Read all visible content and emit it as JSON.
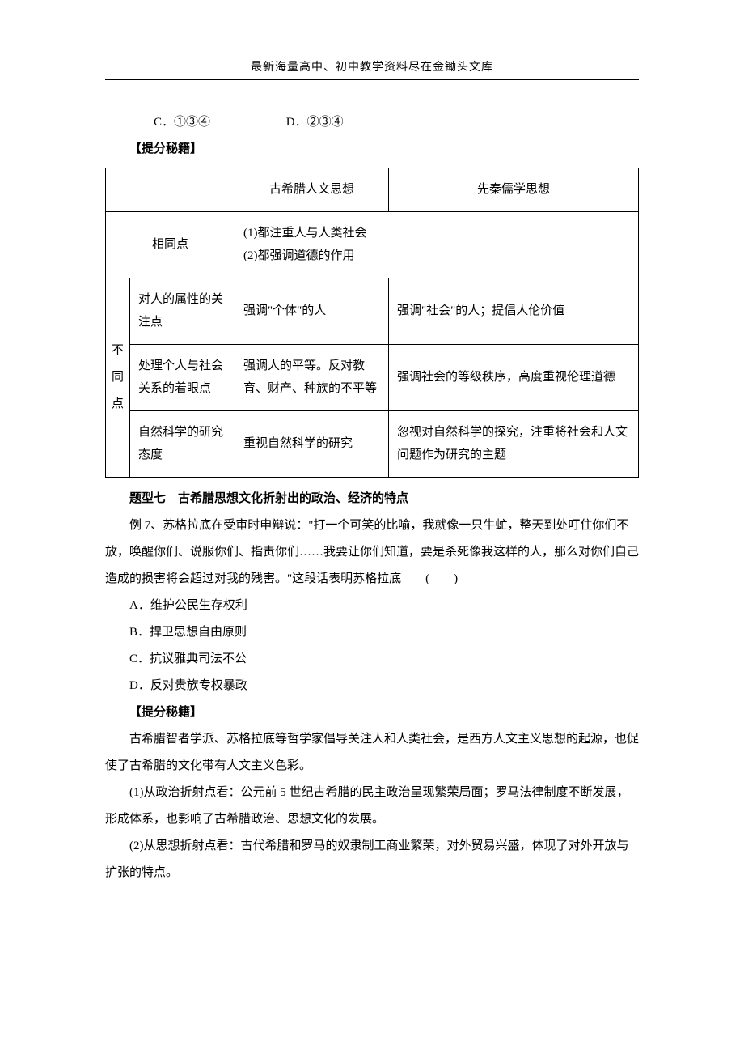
{
  "header": "最新海量高中、初中教学资料尽在金锄头文库",
  "options_cd": {
    "c_label": "C．",
    "c_text": "①③④",
    "d_label": "D．",
    "d_text": "②③④"
  },
  "tips_label": "【提分秘籍】",
  "table": {
    "head_greek": "古希腊人文思想",
    "head_qin": "先秦儒学思想",
    "same_label": "相同点",
    "same_text": "(1)都注重人与人类社会\n(2)都强调道德的作用",
    "diff_label": "不同点",
    "rows": [
      {
        "aspect": "对人的属性的关注点",
        "greek": "强调\"个体\"的人",
        "qin": "强调\"社会\"的人；提倡人伦价值"
      },
      {
        "aspect": "处理个人与社会关系的着眼点",
        "greek": "强调人的平等。反对教育、财产、种族的不平等",
        "qin": "强调社会的等级秩序，高度重视伦理道德"
      },
      {
        "aspect": "自然科学的研究态度",
        "greek": "重视自然科学的研究",
        "qin": "忽视对自然科学的探究，注重将社会和人文问题作为研究的主题"
      }
    ]
  },
  "q7": {
    "title": "题型七　古希腊思想文化折射出的政治、经济的特点",
    "stem_prefix": "例 7、",
    "stem": "苏格拉底在受审时申辩说：\"打一个可笑的比喻，我就像一只牛虻，整天到处叮住你们不放，唤醒你们、说服你们、指责你们……我要让你们知道，要是杀死像我这样的人，那么对你们自己造成的损害将会超过对我的残害。\"这段话表明苏格拉底",
    "paren": "(　　)",
    "A": "A．维护公民生存权利",
    "B": "B．捍卫思想自由原则",
    "C": "C．抗议雅典司法不公",
    "D": "D．反对贵族专权暴政"
  },
  "tips2_label": "【提分秘籍】",
  "para1": "古希腊智者学派、苏格拉底等哲学家倡导关注人和人类社会，是西方人文主义思想的起源，也促使了古希腊的文化带有人文主义色彩。",
  "para2": "(1)从政治折射点看：公元前 5 世纪古希腊的民主政治呈现繁荣局面；罗马法律制度不断发展，形成体系，也影响了古希腊政治、思想文化的发展。",
  "para3": "(2)从思想折射点看：古代希腊和罗马的奴隶制工商业繁荣，对外贸易兴盛，体现了对外开放与扩张的特点。"
}
